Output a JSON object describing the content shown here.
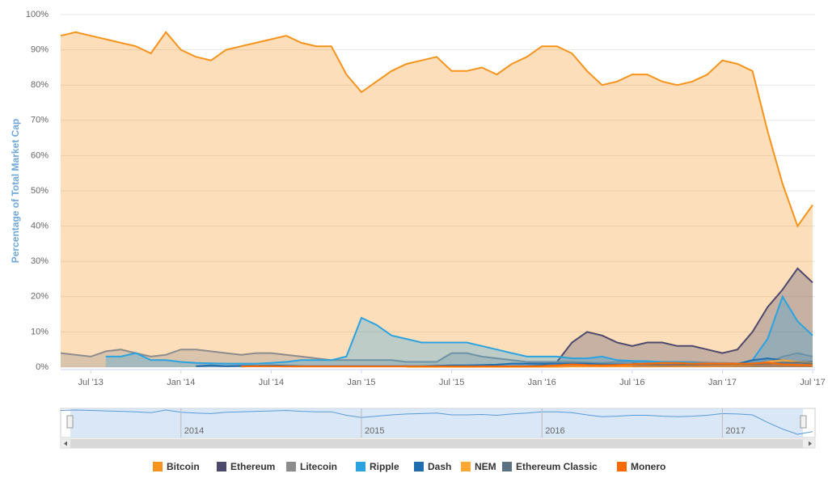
{
  "chart_data": {
    "type": "area",
    "y_label": "Percentage of Total Market Cap",
    "x": [
      "2013-05",
      "2013-06",
      "2013-07",
      "2013-08",
      "2013-09",
      "2013-10",
      "2013-11",
      "2013-12",
      "2014-01",
      "2014-02",
      "2014-03",
      "2014-04",
      "2014-05",
      "2014-06",
      "2014-07",
      "2014-08",
      "2014-09",
      "2014-10",
      "2014-11",
      "2014-12",
      "2015-01",
      "2015-02",
      "2015-03",
      "2015-04",
      "2015-05",
      "2015-06",
      "2015-07",
      "2015-08",
      "2015-09",
      "2015-10",
      "2015-11",
      "2015-12",
      "2016-01",
      "2016-02",
      "2016-03",
      "2016-04",
      "2016-05",
      "2016-06",
      "2016-07",
      "2016-08",
      "2016-09",
      "2016-10",
      "2016-11",
      "2016-12",
      "2017-01",
      "2017-02",
      "2017-03",
      "2017-04",
      "2017-05",
      "2017-06",
      "2017-07"
    ],
    "xlim": [
      "2013-05",
      "2017-07"
    ],
    "xticks": [
      {
        "value": "2013-07",
        "label": "Jul '13"
      },
      {
        "value": "2014-01",
        "label": "Jan '14"
      },
      {
        "value": "2014-07",
        "label": "Jul '14"
      },
      {
        "value": "2015-01",
        "label": "Jan '15"
      },
      {
        "value": "2015-07",
        "label": "Jul '15"
      },
      {
        "value": "2016-01",
        "label": "Jan '16"
      },
      {
        "value": "2016-07",
        "label": "Jul '16"
      },
      {
        "value": "2017-01",
        "label": "Jan '17"
      },
      {
        "value": "2017-07",
        "label": "Jul '17"
      }
    ],
    "navigator_xticks": [
      {
        "value": "2014-01",
        "label": "2014"
      },
      {
        "value": "2015-01",
        "label": "2015"
      },
      {
        "value": "2016-01",
        "label": "2016"
      },
      {
        "value": "2017-01",
        "label": "2017"
      }
    ],
    "ylim": [
      0,
      100
    ],
    "yticks": [
      {
        "value": 0,
        "label": "0%"
      },
      {
        "value": 10,
        "label": "10%"
      },
      {
        "value": 20,
        "label": "20%"
      },
      {
        "value": 30,
        "label": "30%"
      },
      {
        "value": 40,
        "label": "40%"
      },
      {
        "value": 50,
        "label": "50%"
      },
      {
        "value": 60,
        "label": "60%"
      },
      {
        "value": 70,
        "label": "70%"
      },
      {
        "value": 80,
        "label": "80%"
      },
      {
        "value": 90,
        "label": "90%"
      },
      {
        "value": 100,
        "label": "100%"
      }
    ],
    "grid": true,
    "series": [
      {
        "name": "Bitcoin",
        "color": "#f7931a",
        "values": [
          94,
          95,
          94,
          93,
          92,
          91,
          89,
          95,
          90,
          88,
          87,
          90,
          91,
          92,
          93,
          94,
          92,
          91,
          91,
          83,
          78,
          81,
          84,
          86,
          87,
          88,
          84,
          84,
          85,
          83,
          86,
          88,
          91,
          91,
          89,
          84,
          80,
          81,
          83,
          83,
          81,
          80,
          81,
          83,
          87,
          86,
          84,
          67,
          52,
          40,
          46
        ]
      },
      {
        "name": "Ethereum",
        "color": "#4d4a6e",
        "values": [
          null,
          null,
          null,
          null,
          null,
          null,
          null,
          null,
          null,
          null,
          null,
          null,
          null,
          null,
          null,
          null,
          null,
          null,
          null,
          null,
          null,
          null,
          null,
          null,
          null,
          null,
          null,
          0.2,
          0.3,
          0.3,
          0.2,
          0.3,
          0.5,
          1.5,
          7,
          10,
          9,
          7,
          6,
          7,
          7,
          6,
          6,
          5,
          4,
          5,
          10,
          17,
          22,
          28,
          24
        ]
      },
      {
        "name": "Litecoin",
        "color": "#8c8c8c",
        "values": [
          4,
          3.5,
          3,
          4.5,
          5,
          4,
          3,
          3.5,
          5,
          5,
          4.5,
          4,
          3.5,
          4,
          4,
          3.5,
          3,
          2.5,
          2,
          2,
          2,
          2,
          2,
          1.5,
          1.5,
          1.5,
          4,
          4,
          3,
          2.5,
          2,
          1.5,
          1.5,
          1.5,
          1.5,
          1.3,
          1.2,
          1.5,
          1.5,
          1.4,
          1.4,
          1.5,
          1.5,
          1.3,
          1.2,
          1.1,
          1,
          1,
          3,
          4,
          3
        ]
      },
      {
        "name": "Ripple",
        "color": "#2aa3e0",
        "values": [
          null,
          null,
          null,
          3,
          3,
          4,
          2,
          2,
          1.5,
          1.2,
          1.1,
          1,
          1,
          1,
          1.2,
          1.5,
          2,
          2,
          2,
          3,
          14,
          12,
          9,
          8,
          7,
          7,
          7,
          7,
          6,
          5,
          4,
          3,
          3,
          3,
          2.5,
          2.5,
          3,
          2,
          1.8,
          1.7,
          1.5,
          1.5,
          1.3,
          1,
          1,
          1,
          2,
          8,
          20,
          13,
          9
        ]
      },
      {
        "name": "Dash",
        "color": "#1f6fb0",
        "values": [
          null,
          null,
          null,
          null,
          null,
          null,
          null,
          null,
          null,
          0.3,
          0.5,
          0.3,
          0.4,
          0.4,
          0.5,
          0.4,
          0.3,
          0.3,
          0.3,
          0.3,
          0.3,
          0.3,
          0.3,
          0.3,
          0.3,
          0.4,
          0.5,
          0.5,
          0.6,
          0.7,
          1,
          1,
          1,
          1,
          1,
          1,
          0.8,
          0.8,
          0.8,
          0.8,
          0.6,
          0.6,
          0.7,
          0.8,
          0.8,
          0.9,
          2,
          2.5,
          2,
          1.5,
          1.5
        ]
      },
      {
        "name": "NEM",
        "color": "#ffa733",
        "values": [
          null,
          null,
          null,
          null,
          null,
          null,
          null,
          null,
          null,
          null,
          null,
          null,
          null,
          null,
          null,
          null,
          null,
          null,
          null,
          null,
          null,
          null,
          null,
          0.1,
          0.1,
          0.1,
          0.1,
          0.1,
          0.1,
          0.1,
          0.1,
          0.1,
          0.1,
          0.1,
          0.2,
          0.2,
          0.2,
          0.2,
          0.2,
          0.2,
          0.2,
          0.2,
          0.2,
          0.2,
          0.3,
          0.4,
          0.6,
          1.5,
          2,
          1.5,
          1.2
        ]
      },
      {
        "name": "Ethereum Classic",
        "color": "#5b7282",
        "values": [
          null,
          null,
          null,
          null,
          null,
          null,
          null,
          null,
          null,
          null,
          null,
          null,
          null,
          null,
          null,
          null,
          null,
          null,
          null,
          null,
          null,
          null,
          null,
          null,
          null,
          null,
          null,
          null,
          null,
          null,
          null,
          null,
          null,
          null,
          null,
          null,
          null,
          null,
          1,
          0.8,
          0.6,
          0.7,
          0.8,
          0.8,
          0.8,
          0.8,
          0.8,
          1,
          1.2,
          1.3,
          1
        ]
      },
      {
        "name": "Monero",
        "color": "#ff6a00",
        "values": [
          null,
          null,
          null,
          null,
          null,
          null,
          null,
          null,
          null,
          null,
          null,
          null,
          0.2,
          0.3,
          0.3,
          0.2,
          0.2,
          0.2,
          0.2,
          0.2,
          0.2,
          0.2,
          0.2,
          0.2,
          0.2,
          0.2,
          0.2,
          0.2,
          0.2,
          0.2,
          0.2,
          0.2,
          0.3,
          0.5,
          0.8,
          0.6,
          0.5,
          0.6,
          0.8,
          1,
          1.2,
          1.2,
          1,
          1,
          1,
          1,
          1,
          1.3,
          0.8,
          0.6,
          0.6
        ]
      }
    ]
  }
}
